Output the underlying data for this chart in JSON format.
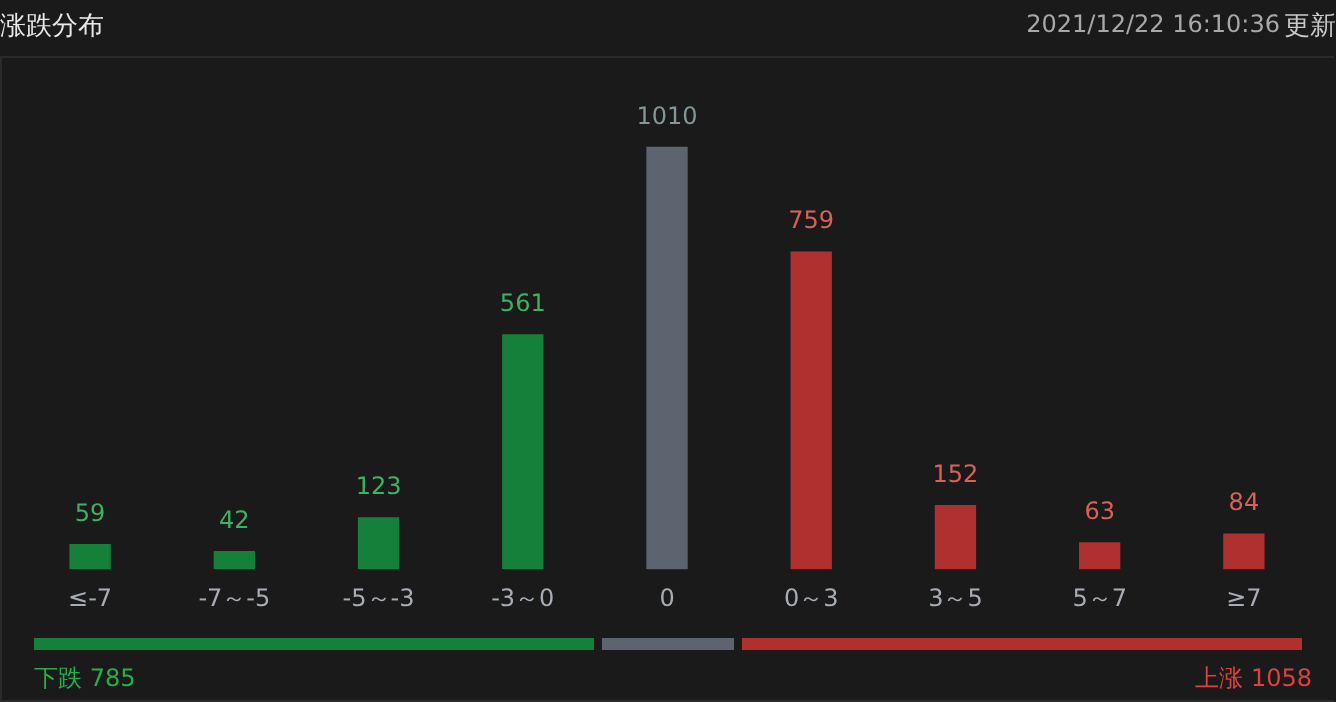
{
  "chart_data": {
    "type": "bar",
    "title": "涨跌分布",
    "categories": [
      "≤-7",
      "-7～-5",
      "-5～-3",
      "-3～0",
      "0",
      "0～3",
      "3～5",
      "5～7",
      "≥7"
    ],
    "values": [
      59,
      42,
      123,
      561,
      1010,
      759,
      152,
      63,
      84
    ],
    "colors": [
      "#15803a",
      "#15803a",
      "#15803a",
      "#15803a",
      "#5d6470",
      "#b03030",
      "#b03030",
      "#b03030",
      "#b03030"
    ],
    "data_labels": true,
    "legend": false,
    "tick_labels": "x",
    "annotations": [
      "2021/12/22 16:10:36",
      "更新",
      "下跌 785",
      "上涨 1058"
    ]
  }
}
